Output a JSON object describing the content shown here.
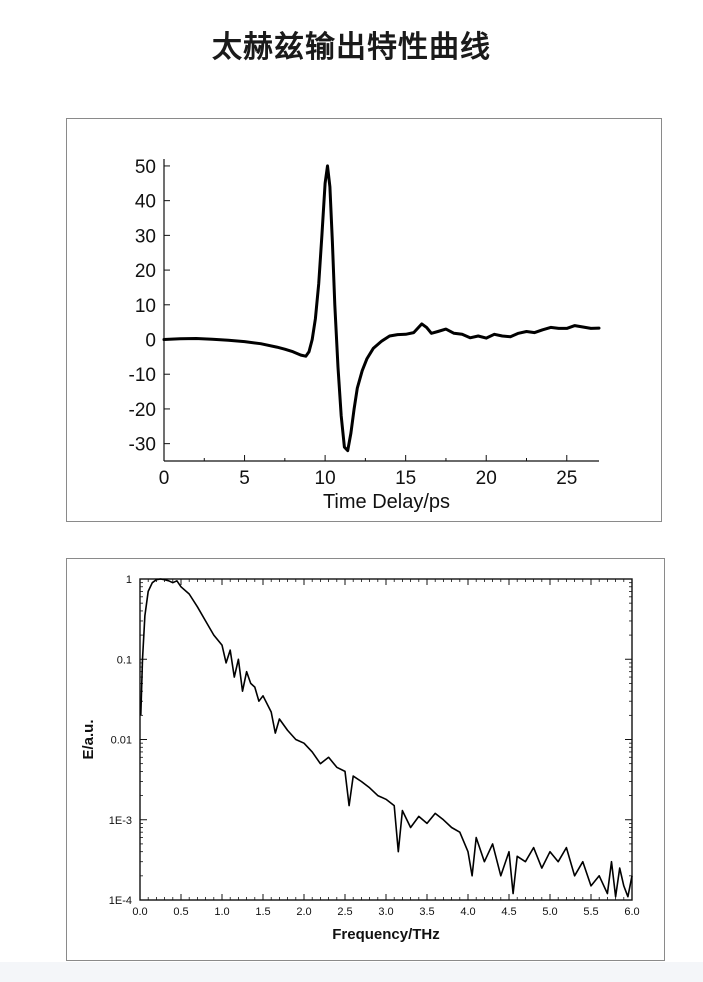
{
  "title": "太赫兹输出特性曲线",
  "chart_data": [
    {
      "type": "line",
      "xlabel": "Time Delay/ps",
      "ylabel": "",
      "xlim": [
        0,
        27
      ],
      "ylim": [
        -35,
        52
      ],
      "x_ticks": [
        0,
        5,
        10,
        15,
        20,
        25
      ],
      "y_ticks": [
        50,
        40,
        30,
        20,
        10,
        0,
        -10,
        -20,
        -30
      ],
      "x_tick_labels": [
        "0",
        "5",
        "10",
        "15",
        "20",
        "25"
      ],
      "y_tick_labels": [
        "50",
        "40",
        "30",
        "20",
        "10",
        "0",
        "-10",
        "-20",
        "-30"
      ],
      "grid": false,
      "series": [
        {
          "x": [
            0,
            1,
            2,
            3,
            4,
            5,
            6,
            7,
            7.5,
            8,
            8.5,
            8.8,
            9,
            9.2,
            9.4,
            9.6,
            9.8,
            10,
            10.15,
            10.3,
            10.45,
            10.6,
            10.8,
            11,
            11.2,
            11.4,
            11.6,
            11.8,
            12,
            12.3,
            12.6,
            13,
            13.5,
            14,
            14.5,
            15,
            15.5,
            16,
            16.3,
            16.6,
            17,
            17.5,
            18,
            18.5,
            19,
            19.5,
            20,
            20.5,
            21,
            21.5,
            22,
            22.5,
            23,
            23.5,
            24,
            24.5,
            25,
            25.5,
            26,
            26.5,
            27
          ],
          "y": [
            0,
            0.2,
            0.3,
            0.1,
            -0.2,
            -0.6,
            -1.2,
            -2.2,
            -2.8,
            -3.5,
            -4.5,
            -4.8,
            -3.5,
            0,
            6,
            16,
            30,
            45,
            50,
            44,
            28,
            10,
            -8,
            -22,
            -31,
            -32,
            -27,
            -20,
            -14,
            -9,
            -5.5,
            -2.5,
            -0.5,
            1,
            1.4,
            1.5,
            2,
            4.5,
            3.5,
            1.8,
            2.3,
            3,
            1.8,
            1.5,
            0.5,
            1,
            0.4,
            1.5,
            1,
            0.8,
            1.8,
            2.3,
            2,
            2.8,
            3.5,
            3.2,
            3.2,
            4,
            3.6,
            3.2,
            3.3
          ]
        }
      ]
    },
    {
      "type": "line",
      "xlabel": "Frequency/THz",
      "ylabel": "E/a.u.",
      "xlim": [
        0,
        6
      ],
      "ylim": [
        0.0001,
        1
      ],
      "log_y": true,
      "x_ticks": [
        0,
        0.5,
        1,
        1.5,
        2,
        2.5,
        3,
        3.5,
        4,
        4.5,
        5,
        5.5,
        6
      ],
      "y_ticks": [
        1,
        0.1,
        0.01,
        0.001,
        0.0001
      ],
      "x_tick_labels": [
        "0.0",
        "0.5",
        "1.0",
        "1.5",
        "2.0",
        "2.5",
        "3.0",
        "3.5",
        "4.0",
        "4.5",
        "5.0",
        "5.5",
        "6.0"
      ],
      "y_tick_labels": [
        "1",
        "0.1",
        "0.01",
        "1E-3",
        "1E-4"
      ],
      "grid": false,
      "series": [
        {
          "x": [
            0.01,
            0.03,
            0.06,
            0.1,
            0.15,
            0.2,
            0.25,
            0.3,
            0.35,
            0.4,
            0.45,
            0.5,
            0.6,
            0.7,
            0.8,
            0.9,
            1.0,
            1.05,
            1.1,
            1.15,
            1.2,
            1.25,
            1.3,
            1.35,
            1.4,
            1.45,
            1.5,
            1.6,
            1.65,
            1.7,
            1.8,
            1.9,
            2.0,
            2.1,
            2.2,
            2.3,
            2.4,
            2.5,
            2.55,
            2.6,
            2.7,
            2.8,
            2.9,
            3.0,
            3.1,
            3.15,
            3.2,
            3.3,
            3.4,
            3.5,
            3.6,
            3.7,
            3.8,
            3.9,
            4.0,
            4.05,
            4.1,
            4.2,
            4.3,
            4.4,
            4.5,
            4.55,
            4.6,
            4.7,
            4.8,
            4.9,
            5.0,
            5.1,
            5.2,
            5.3,
            5.4,
            5.5,
            5.6,
            5.7,
            5.75,
            5.8,
            5.85,
            5.9,
            5.95,
            6.0
          ],
          "y": [
            0.02,
            0.1,
            0.35,
            0.7,
            0.9,
            0.98,
            1.0,
            0.98,
            0.95,
            0.9,
            0.95,
            0.8,
            0.65,
            0.45,
            0.3,
            0.2,
            0.15,
            0.09,
            0.13,
            0.06,
            0.1,
            0.04,
            0.07,
            0.05,
            0.045,
            0.03,
            0.035,
            0.022,
            0.012,
            0.018,
            0.013,
            0.01,
            0.009,
            0.007,
            0.005,
            0.006,
            0.0045,
            0.004,
            0.0015,
            0.0035,
            0.003,
            0.0025,
            0.002,
            0.0018,
            0.0015,
            0.0004,
            0.0013,
            0.0008,
            0.0011,
            0.0009,
            0.0012,
            0.001,
            0.0008,
            0.0007,
            0.0004,
            0.0002,
            0.0006,
            0.0003,
            0.0005,
            0.0002,
            0.0004,
            0.00012,
            0.00035,
            0.0003,
            0.00045,
            0.00025,
            0.0004,
            0.0003,
            0.00045,
            0.0002,
            0.0003,
            0.00015,
            0.0002,
            0.00012,
            0.0003,
            0.00011,
            0.00025,
            0.00015,
            0.00011,
            0.0002
          ]
        }
      ]
    }
  ]
}
